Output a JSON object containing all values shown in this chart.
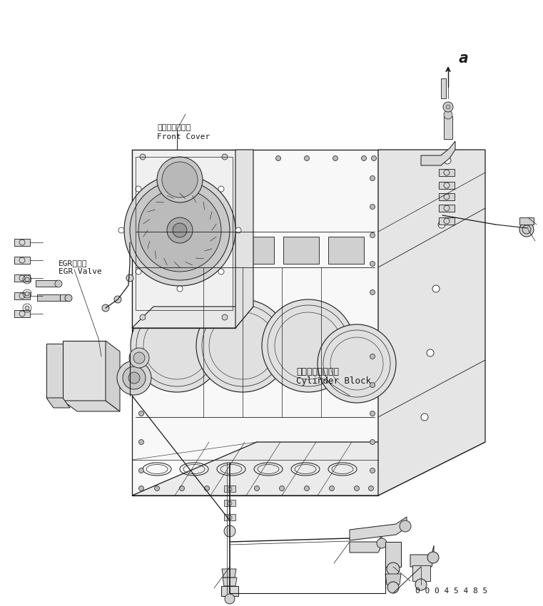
{
  "bg_color": "#ffffff",
  "line_color": "#1a1a1a",
  "fig_width": 7.61,
  "fig_height": 8.5,
  "part_number": "0 0 0 4 5 4 8 5",
  "labels": {
    "egr_jp": "EGRバルブ",
    "egr_en": "EGR Valve",
    "cylinder_jp": "シリンダブロック",
    "cylinder_en": "Cylinder Block",
    "front_jp": "フロントカバー",
    "front_en": "Front Cover",
    "arrow_label": "a"
  }
}
